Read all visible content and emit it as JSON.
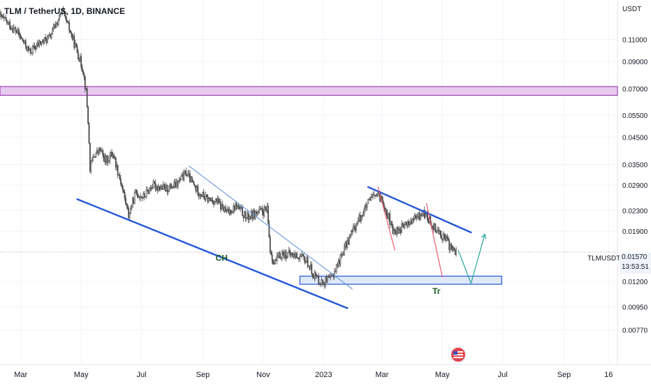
{
  "header": {
    "title": "TLM / TetherUS, 1D, BINANCE"
  },
  "currency": "USDT",
  "ticker_badge": "TLMUSDT",
  "price_badge": {
    "price": "0.01570",
    "countdown": "13:53:51"
  },
  "colors": {
    "candle": "#4a4a4a",
    "channel_blue": "#2257d6",
    "thin_blue": "#5b8fdb",
    "red_line": "#ef5b6b",
    "green_arrow": "#26a69a",
    "resistance_fill": "#e8c9f0",
    "resistance_stroke": "#8e24aa",
    "support_fill": "#dfe8f7",
    "support_stroke": "#2257d6"
  },
  "chart_data": {
    "type": "candlestick",
    "title": "TLM / TetherUS, 1D, BINANCE",
    "y_scale": "log",
    "ylim": [
      0.0068,
      0.15
    ],
    "y_ticks": [
      "0.11000",
      "0.09000",
      "0.07000",
      "0.05500",
      "0.04500",
      "0.03500",
      "0.02900",
      "0.02300",
      "0.01900",
      "0.01570",
      "0.01200",
      "0.00950",
      "0.00770"
    ],
    "x_ticks": [
      "Mar",
      "May",
      "Jul",
      "Sep",
      "Nov",
      "2023",
      "Mar",
      "May",
      "Jul",
      "Sep",
      "16"
    ],
    "x_range": [
      "2022-02-08",
      "2023-10-25"
    ],
    "last_price": 0.0157,
    "close_series": [
      [
        "2022-02-08",
        0.136
      ],
      [
        "2022-02-25",
        0.118
      ],
      [
        "2022-03-10",
        0.098
      ],
      [
        "2022-03-20",
        0.106
      ],
      [
        "2022-03-30",
        0.112
      ],
      [
        "2022-04-05",
        0.125
      ],
      [
        "2022-04-12",
        0.142
      ],
      [
        "2022-04-20",
        0.118
      ],
      [
        "2022-04-28",
        0.096
      ],
      [
        "2022-05-03",
        0.083
      ],
      [
        "2022-05-06",
        0.068
      ],
      [
        "2022-05-08",
        0.052
      ],
      [
        "2022-05-10",
        0.034
      ],
      [
        "2022-05-14",
        0.038
      ],
      [
        "2022-05-20",
        0.04
      ],
      [
        "2022-05-26",
        0.036
      ],
      [
        "2022-06-02",
        0.039
      ],
      [
        "2022-06-10",
        0.03
      ],
      [
        "2022-06-18",
        0.022
      ],
      [
        "2022-06-25",
        0.027
      ],
      [
        "2022-07-03",
        0.026
      ],
      [
        "2022-07-12",
        0.029
      ],
      [
        "2022-07-25",
        0.028
      ],
      [
        "2022-08-05",
        0.029
      ],
      [
        "2022-08-15",
        0.0325
      ],
      [
        "2022-08-25",
        0.028
      ],
      [
        "2022-09-05",
        0.0255
      ],
      [
        "2022-09-15",
        0.025
      ],
      [
        "2022-09-25",
        0.0225
      ],
      [
        "2022-10-05",
        0.024
      ],
      [
        "2022-10-15",
        0.0215
      ],
      [
        "2022-10-25",
        0.0225
      ],
      [
        "2022-11-05",
        0.023
      ],
      [
        "2022-11-08",
        0.016
      ],
      [
        "2022-11-12",
        0.0142
      ],
      [
        "2022-11-20",
        0.0155
      ],
      [
        "2022-12-05",
        0.0152
      ],
      [
        "2022-12-15",
        0.0145
      ],
      [
        "2022-12-22",
        0.0128
      ],
      [
        "2022-12-30",
        0.0119
      ],
      [
        "2023-01-08",
        0.0122
      ],
      [
        "2023-01-15",
        0.014
      ],
      [
        "2023-01-22",
        0.0162
      ],
      [
        "2023-01-30",
        0.019
      ],
      [
        "2023-02-08",
        0.022
      ],
      [
        "2023-02-15",
        0.0245
      ],
      [
        "2023-02-22",
        0.0265
      ],
      [
        "2023-03-01",
        0.0255
      ],
      [
        "2023-03-08",
        0.0215
      ],
      [
        "2023-03-12",
        0.0188
      ],
      [
        "2023-03-20",
        0.0195
      ],
      [
        "2023-03-28",
        0.0205
      ],
      [
        "2023-04-05",
        0.0215
      ],
      [
        "2023-04-12",
        0.0225
      ],
      [
        "2023-04-20",
        0.0205
      ],
      [
        "2023-04-28",
        0.0188
      ],
      [
        "2023-05-05",
        0.0175
      ],
      [
        "2023-05-10",
        0.0162
      ],
      [
        "2023-05-15",
        0.0157
      ]
    ],
    "annotations": [
      {
        "label": "CH",
        "type": "text"
      },
      {
        "label": "Tr",
        "type": "text"
      }
    ],
    "horizontal_zones": [
      {
        "type": "resistance",
        "range": [
          0.066,
          0.0715
        ]
      },
      {
        "type": "support",
        "range": [
          0.0117,
          0.0126
        ]
      }
    ],
    "trendlines": [
      {
        "type": "channel-lower",
        "from": [
          "2022-04-27",
          0.0255
        ],
        "to": [
          "2023-01-25",
          0.0094
        ]
      },
      {
        "type": "channel-upper",
        "from": [
          "2022-08-18",
          0.0345
        ],
        "to": [
          "2023-01-30",
          0.0112
        ]
      },
      {
        "type": "channel-upper",
        "from": [
          "2023-02-15",
          0.0285
        ],
        "to": [
          "2023-05-30",
          0.0188
        ]
      },
      {
        "type": "drop",
        "from": [
          "2023-02-25",
          0.0285
        ],
        "to": [
          "2023-03-14",
          0.016
        ]
      },
      {
        "type": "drop",
        "from": [
          "2023-04-15",
          0.0245
        ],
        "to": [
          "2023-05-01",
          0.0125
        ]
      }
    ],
    "projection": [
      [
        "2023-05-17",
        0.016
      ],
      [
        "2023-05-30",
        0.0118
      ],
      [
        "2023-06-13",
        0.0185
      ]
    ]
  }
}
